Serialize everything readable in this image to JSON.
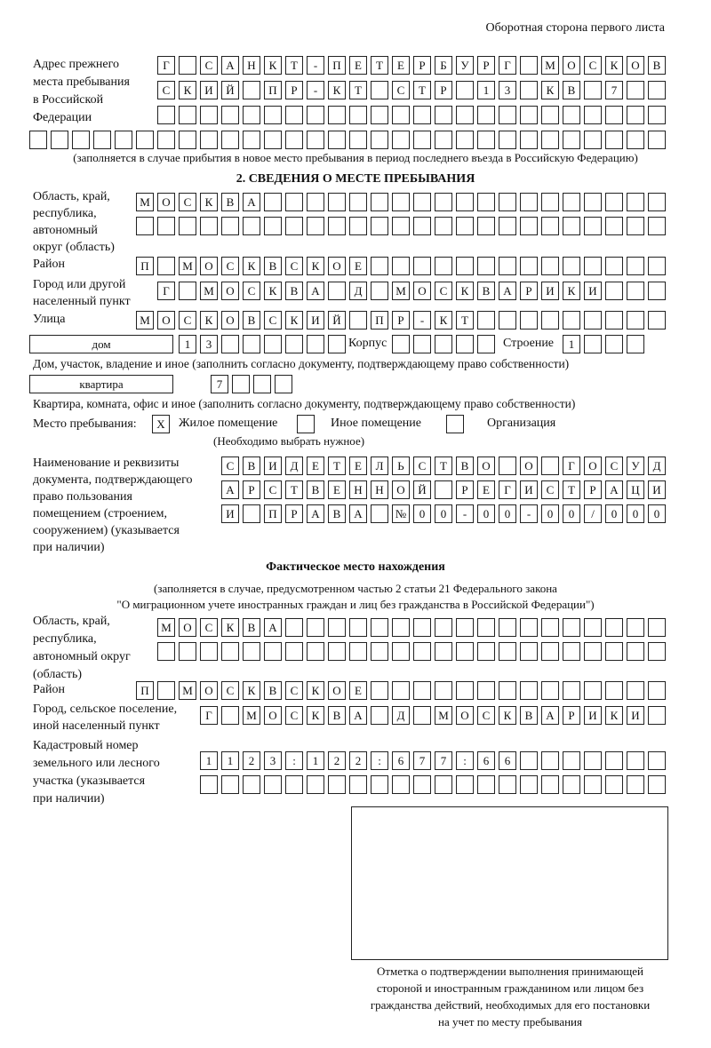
{
  "header": "Оборотная сторона первого листа",
  "prev_address": {
    "label": [
      "Адрес прежнего",
      "места пребывания",
      "в Российской",
      "Федерации"
    ],
    "rows": [
      [
        "Г",
        "",
        "С",
        "А",
        "Н",
        "К",
        "Т",
        "-",
        "П",
        "Е",
        "Т",
        "Е",
        "Р",
        "Б",
        "У",
        "Р",
        "Г",
        "",
        "М",
        "О",
        "С",
        "К",
        "О",
        "В"
      ],
      [
        "С",
        "К",
        "И",
        "Й",
        "",
        "П",
        "Р",
        "-",
        "К",
        "Т",
        "",
        "С",
        "Т",
        "Р",
        "",
        "1",
        "3",
        "",
        "К",
        "В",
        "",
        "7",
        "",
        ""
      ],
      [
        "",
        "",
        "",
        "",
        "",
        "",
        "",
        "",
        "",
        "",
        "",
        "",
        "",
        "",
        "",
        "",
        "",
        "",
        "",
        "",
        "",
        "",
        "",
        ""
      ],
      [
        "",
        "",
        "",
        "",
        "",
        "",
        "",
        "",
        "",
        "",
        "",
        "",
        "",
        "",
        "",
        "",
        "",
        "",
        "",
        "",
        "",
        "",
        "",
        "",
        "",
        "",
        "",
        "",
        "",
        ""
      ]
    ],
    "note": "(заполняется в случае прибытия в новое место пребывания в период последнего въезда в Российскую Федерацию)"
  },
  "section2": {
    "title": "2. СВЕДЕНИЯ О МЕСТЕ ПРЕБЫВАНИЯ",
    "region_label": [
      "Область, край,",
      "республика,",
      "автономный",
      "округ (область)"
    ],
    "region_rows": [
      [
        "М",
        "О",
        "С",
        "К",
        "В",
        "А",
        "",
        "",
        "",
        "",
        "",
        "",
        "",
        "",
        "",
        "",
        "",
        "",
        "",
        "",
        "",
        "",
        "",
        "",
        ""
      ],
      [
        "",
        "",
        "",
        "",
        "",
        "",
        "",
        "",
        "",
        "",
        "",
        "",
        "",
        "",
        "",
        "",
        "",
        "",
        "",
        "",
        "",
        "",
        "",
        "",
        ""
      ]
    ],
    "district_label": "Район",
    "district_row": [
      "П",
      "",
      "М",
      "О",
      "С",
      "К",
      "В",
      "С",
      "К",
      "О",
      "Е",
      "",
      "",
      "",
      "",
      "",
      "",
      "",
      "",
      "",
      "",
      "",
      "",
      "",
      ""
    ],
    "city_label": [
      "Город или другой",
      "населенный пункт"
    ],
    "city_row": [
      "Г",
      "",
      "М",
      "О",
      "С",
      "К",
      "В",
      "А",
      "",
      "Д",
      "",
      "М",
      "О",
      "С",
      "К",
      "В",
      "А",
      "Р",
      "И",
      "К",
      "И",
      "",
      "",
      ""
    ],
    "street_label": "Улица",
    "street_row": [
      "М",
      "О",
      "С",
      "К",
      "О",
      "В",
      "С",
      "К",
      "И",
      "Й",
      "",
      "П",
      "Р",
      "-",
      "К",
      "Т",
      "",
      "",
      "",
      "",
      "",
      "",
      "",
      "",
      ""
    ],
    "house_type": "дом",
    "house_row": [
      "1",
      "3",
      "",
      "",
      "",
      "",
      "",
      ""
    ],
    "korpus_label": "Корпус",
    "korpus_row": [
      "",
      "",
      "",
      "",
      ""
    ],
    "building_label": "Строение",
    "building_row": [
      "1",
      "",
      "",
      ""
    ],
    "house_note": "Дом, участок, владение и иное (заполнить согласно документу, подтверждающему право собственности)",
    "flat_type": "квартира",
    "flat_row": [
      "7",
      "",
      "",
      ""
    ],
    "flat_note": "Квартира, комната, офис и иное (заполнить согласно документу, подтверждающему право собственности)",
    "stay_place_label": "Место пребывания:",
    "stay_options": [
      {
        "mark": "X",
        "label": "Жилое помещение"
      },
      {
        "mark": "",
        "label": "Иное помещение"
      },
      {
        "mark": "",
        "label": "Организация"
      }
    ],
    "stay_note": "(Необходимо выбрать нужное)",
    "doc_label": [
      "Наименование и реквизиты",
      "документа, подтверждающего",
      "право пользования",
      "помещением (строением,",
      "сооружением) (указывается",
      "при наличии)"
    ],
    "doc_rows": [
      [
        "С",
        "В",
        "И",
        "Д",
        "Е",
        "Т",
        "Е",
        "Л",
        "Ь",
        "С",
        "Т",
        "В",
        "О",
        "",
        "О",
        "",
        "Г",
        "О",
        "С",
        "У",
        "Д"
      ],
      [
        "А",
        "Р",
        "С",
        "Т",
        "В",
        "Е",
        "Н",
        "Н",
        "О",
        "Й",
        "",
        "Р",
        "Е",
        "Г",
        "И",
        "С",
        "Т",
        "Р",
        "А",
        "Ц",
        "И"
      ],
      [
        "И",
        "",
        "П",
        "Р",
        "А",
        "В",
        "А",
        "",
        "№",
        "0",
        "0",
        "-",
        "0",
        "0",
        "-",
        "0",
        "0",
        "/",
        "0",
        "0",
        "0"
      ]
    ]
  },
  "actual": {
    "title": "Фактическое место нахождения",
    "note": [
      "(заполняется в случае, предусмотренном частью 2 статьи 21 Федерального закона",
      "\"О миграционном учете иностранных граждан и лиц без гражданства в Российской Федерации\")"
    ],
    "region_label": [
      "Область, край,",
      "республика,",
      "автономный округ",
      "(область)"
    ],
    "region_rows": [
      [
        "М",
        "О",
        "С",
        "К",
        "В",
        "А",
        "",
        "",
        "",
        "",
        "",
        "",
        "",
        "",
        "",
        "",
        "",
        "",
        "",
        "",
        "",
        "",
        "",
        ""
      ],
      [
        "",
        "",
        "",
        "",
        "",
        "",
        "",
        "",
        "",
        "",
        "",
        "",
        "",
        "",
        "",
        "",
        "",
        "",
        "",
        "",
        "",
        "",
        "",
        ""
      ]
    ],
    "district_label": "Район",
    "district_row": [
      "П",
      "",
      "М",
      "О",
      "С",
      "К",
      "В",
      "С",
      "К",
      "О",
      "Е",
      "",
      "",
      "",
      "",
      "",
      "",
      "",
      "",
      "",
      "",
      "",
      "",
      "",
      ""
    ],
    "city_label": [
      "Город, сельское поселение,",
      "иной населенный пункт"
    ],
    "city_row": [
      "Г",
      "",
      "М",
      "О",
      "С",
      "К",
      "В",
      "А",
      "",
      "Д",
      "",
      "М",
      "О",
      "С",
      "К",
      "В",
      "А",
      "Р",
      "И",
      "К",
      "И",
      ""
    ],
    "cadastre_label": [
      "Кадастровый номер",
      "земельного или лесного",
      "участка (указывается",
      "при наличии)"
    ],
    "cadastre_rows": [
      [
        "1",
        "1",
        "2",
        "3",
        ":",
        "1",
        "2",
        "2",
        ":",
        "6",
        "7",
        "7",
        ":",
        "6",
        "6",
        "",
        "",
        "",
        "",
        "",
        "",
        ""
      ],
      [
        "",
        "",
        "",
        "",
        "",
        "",
        "",
        "",
        "",
        "",
        "",
        "",
        "",
        "",
        "",
        "",
        "",
        "",
        "",
        "",
        "",
        ""
      ]
    ]
  },
  "stamp_box_caption": [
    "Отметка о подтверждении выполнения принимающей",
    "стороной и иностранным гражданином или лицом без",
    "гражданства действий, необходимых для его постановки",
    "на учет по месту пребывания"
  ]
}
